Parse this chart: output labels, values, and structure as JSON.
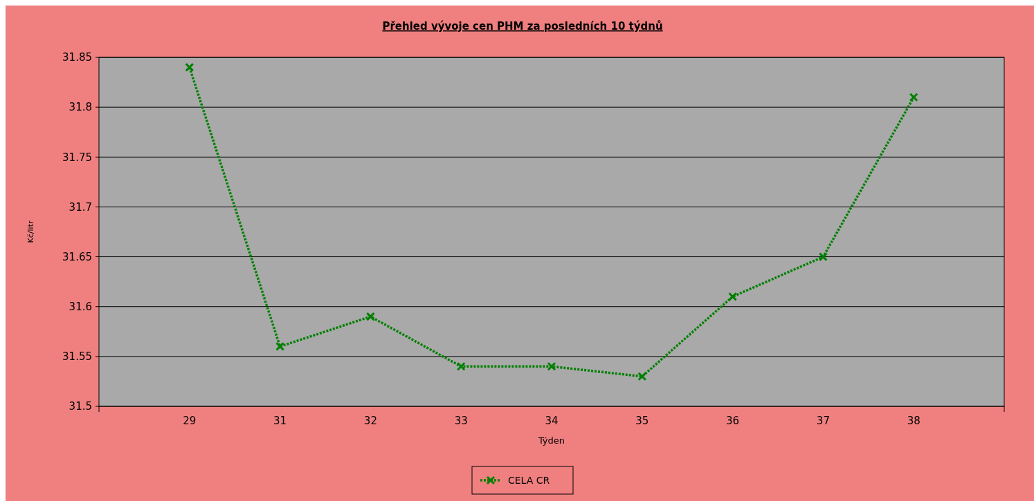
{
  "chart_data": {
    "type": "line",
    "title": "Přehled vývoje cen PHM za posledních 10 týdnů",
    "xlabel": "Týden",
    "ylabel": "Kč/litr",
    "categories": [
      "29",
      "31",
      "32",
      "33",
      "34",
      "35",
      "36",
      "37",
      "38"
    ],
    "series": [
      {
        "name": "CELA CR",
        "color": "#008000",
        "values": [
          31.84,
          31.56,
          31.59,
          31.54,
          31.54,
          31.53,
          31.61,
          31.65,
          31.81
        ]
      }
    ],
    "ylim": [
      31.5,
      31.85
    ],
    "yticks": [
      31.5,
      31.55,
      31.6,
      31.65,
      31.7,
      31.75,
      31.8,
      31.85
    ],
    "grid": "y",
    "legend": "bottom",
    "marker": "cross",
    "line_style": "dotted"
  }
}
